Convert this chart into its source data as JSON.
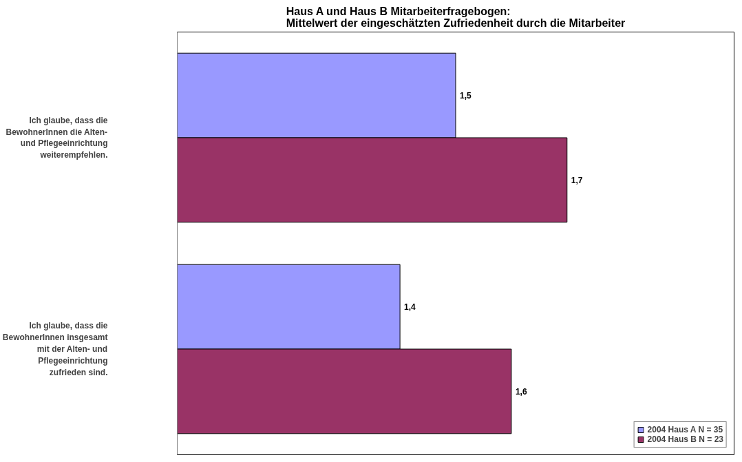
{
  "chart_data": {
    "type": "bar",
    "orientation": "horizontal",
    "title": "Haus A und Haus B Mitarbeiterfragebogen:\nMittelwert der eingeschätzten Zufriedenheit durch die Mitarbeiter",
    "categories": [
      "Ich glaube, dass die BewohnerInnen die Alten- und Pflegeeinrichtung weiterempfehlen.",
      "Ich glaube, dass die BewohnerInnen insgesamt mit der Alten- und Pflegeeinrichtung zufrieden sind."
    ],
    "series": [
      {
        "name": "2004 Haus A N = 35",
        "color": "#9999ff",
        "values": [
          1.5,
          1.4
        ],
        "value_labels": [
          "1,5",
          "1,4"
        ]
      },
      {
        "name": "2004 Haus B N = 23",
        "color": "#993366",
        "values": [
          1.7,
          1.6
        ],
        "value_labels": [
          "1,7",
          "1,6"
        ]
      }
    ],
    "xlim": [
      1,
      2
    ],
    "tick_labels": "y",
    "grid": false,
    "legend": "bottom right"
  }
}
